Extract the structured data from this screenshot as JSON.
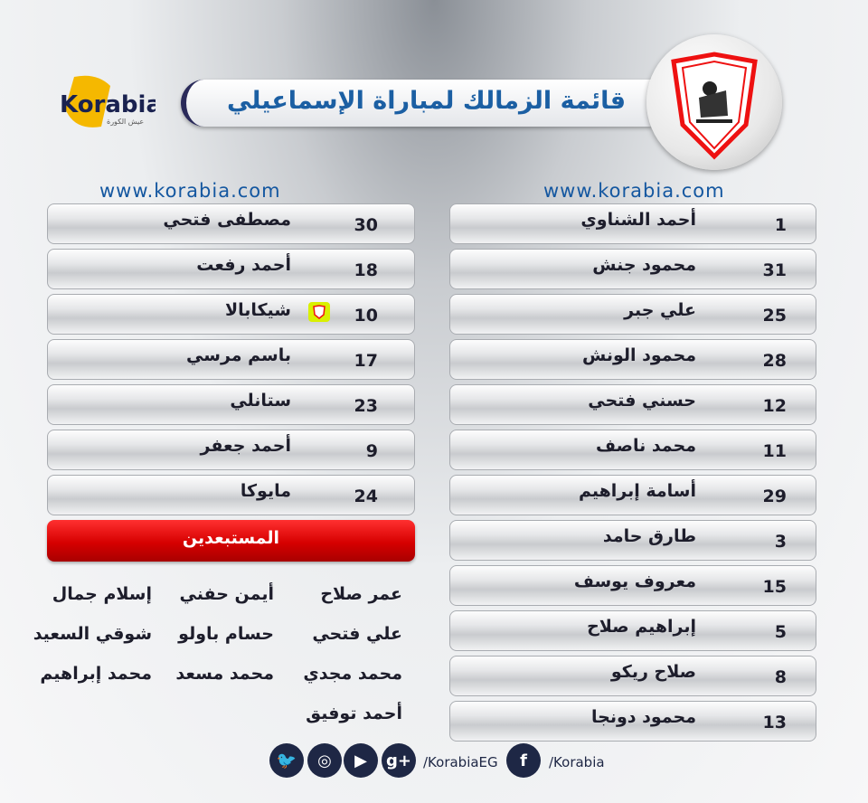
{
  "header": {
    "title": "قائمة الزمالك لمباراة الإسماعيلي",
    "logo_text": "Korabia",
    "logo_tagline": "عيش الكورة"
  },
  "website": "www.korabia.com",
  "lineup_right": [
    {
      "number": "1",
      "name": "أحمد الشناوي"
    },
    {
      "number": "31",
      "name": "محمود جنش"
    },
    {
      "number": "25",
      "name": "علي جبر"
    },
    {
      "number": "28",
      "name": "محمود الونش"
    },
    {
      "number": "12",
      "name": "حسني فتحي"
    },
    {
      "number": "11",
      "name": "محمد ناصف"
    },
    {
      "number": "29",
      "name": "أسامة إبراهيم"
    },
    {
      "number": "3",
      "name": "طارق حامد"
    },
    {
      "number": "15",
      "name": "معروف يوسف"
    },
    {
      "number": "5",
      "name": "إبراهيم صلاح"
    },
    {
      "number": "8",
      "name": "صلاح ريكو"
    },
    {
      "number": "13",
      "name": "محمود دونجا"
    }
  ],
  "lineup_left": [
    {
      "number": "30",
      "name": "مصطفى فتحي"
    },
    {
      "number": "18",
      "name": "أحمد رفعت"
    },
    {
      "number": "10",
      "name": "شيكابالا",
      "captain": true
    },
    {
      "number": "17",
      "name": "باسم مرسي"
    },
    {
      "number": "23",
      "name": "ستانلي"
    },
    {
      "number": "9",
      "name": "أحمد جعفر"
    },
    {
      "number": "24",
      "name": "مايوكا"
    }
  ],
  "excluded_title": "المستبعدين",
  "excluded": {
    "col1": [
      "عمر صلاح",
      "علي فتحي",
      "محمد مجدي",
      "أحمد توفيق"
    ],
    "col2": [
      "أيمن حفني",
      "حسام باولو",
      "محمد مسعد"
    ],
    "col3": [
      "إسلام جمال",
      "شوقي السعيد",
      "محمد إبراهيم"
    ]
  },
  "footer": {
    "icons": [
      "twitter-icon",
      "instagram-icon",
      "youtube-icon",
      "google-plus-icon",
      "facebook-icon"
    ],
    "handle1": "/KorabiaEG",
    "handle2": "/Korabia"
  },
  "colors": {
    "title": "#1b5fa3",
    "red_bar": "#d60000",
    "social": "#1e2745",
    "captain_badge": "#d9f000"
  }
}
